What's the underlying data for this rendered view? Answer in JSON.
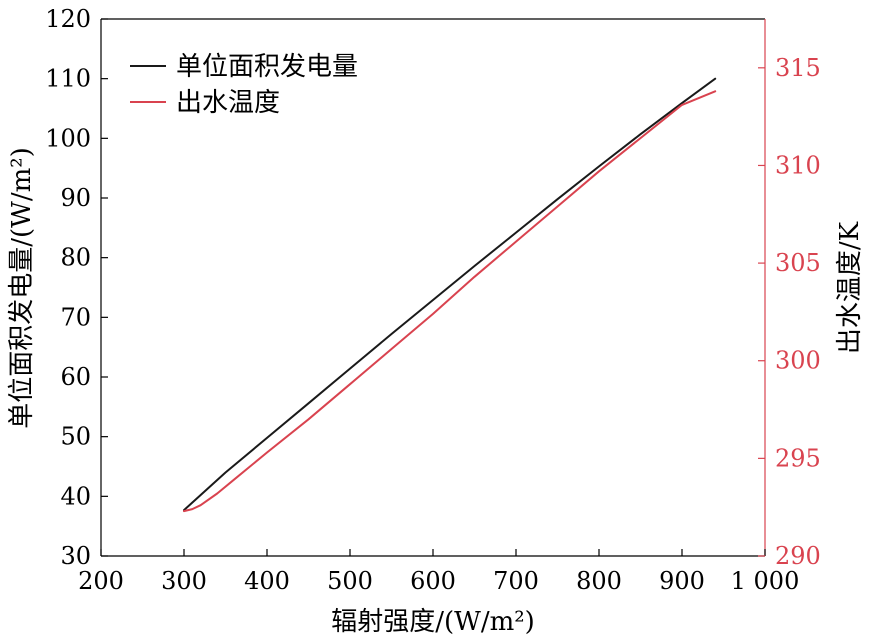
{
  "chart_data": {
    "type": "line",
    "title": "",
    "xlabel": "辐射强度/(W/m²)",
    "ylabel": "单位面积发电量/(W/m²)",
    "y2label": "出水温度/K",
    "xlim": [
      200,
      1000
    ],
    "ylim": [
      30,
      120
    ],
    "y2lim": [
      290,
      317.5
    ],
    "x_ticks": [
      200,
      300,
      400,
      500,
      600,
      700,
      800,
      900,
      1000
    ],
    "x_tick_labels": [
      "200",
      "300",
      "400",
      "500",
      "600",
      "700",
      "800",
      "900",
      "1 000"
    ],
    "y_ticks": [
      30,
      40,
      50,
      60,
      70,
      80,
      90,
      100,
      110,
      120
    ],
    "y_tick_labels": [
      "30",
      "40",
      "50",
      "60",
      "70",
      "80",
      "90",
      "100",
      "110",
      "120"
    ],
    "y2_ticks": [
      290,
      295,
      300,
      305,
      310,
      315
    ],
    "y2_tick_labels": [
      "290",
      "295",
      "300",
      "305",
      "310",
      "315"
    ],
    "grid": false,
    "legend_position": "top-left",
    "colors": {
      "power": "#1a1a1a",
      "temp": "#d9434f",
      "axis": "#000000"
    },
    "series": [
      {
        "name": "单位面积发电量",
        "axis": "left",
        "x": [
          300,
          350,
          400,
          450,
          500,
          550,
          600,
          650,
          700,
          750,
          800,
          850,
          900,
          940
        ],
        "values": [
          37.7,
          44.0,
          49.8,
          55.6,
          61.4,
          67.2,
          72.9,
          78.6,
          84.2,
          89.8,
          95.3,
          100.7,
          105.9,
          110.0
        ]
      },
      {
        "name": "出水温度",
        "axis": "right",
        "x": [
          300,
          310,
          320,
          340,
          360,
          400,
          450,
          500,
          550,
          600,
          650,
          700,
          750,
          800,
          850,
          900,
          940
        ],
        "values": [
          292.3,
          292.4,
          292.6,
          293.2,
          293.9,
          295.3,
          297.0,
          298.8,
          300.6,
          302.4,
          304.3,
          306.1,
          307.9,
          309.7,
          311.4,
          313.1,
          313.8
        ]
      }
    ]
  }
}
